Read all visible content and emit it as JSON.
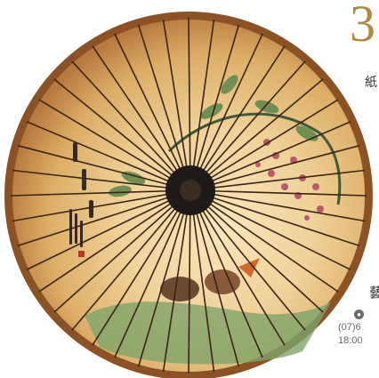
{
  "image": {
    "subject": "paper-umbrella",
    "colors": {
      "paper": "#e9c98a",
      "rim": "#9a5f2e",
      "ribs": "#3b2514",
      "hub": "#1f1a18",
      "text_accent": "#b08a3e"
    }
  },
  "side_text": {
    "number": "3",
    "label_1": "紙",
    "label_2": "藝",
    "contact_line_1": "(07)6",
    "contact_line_2": "18:00"
  }
}
